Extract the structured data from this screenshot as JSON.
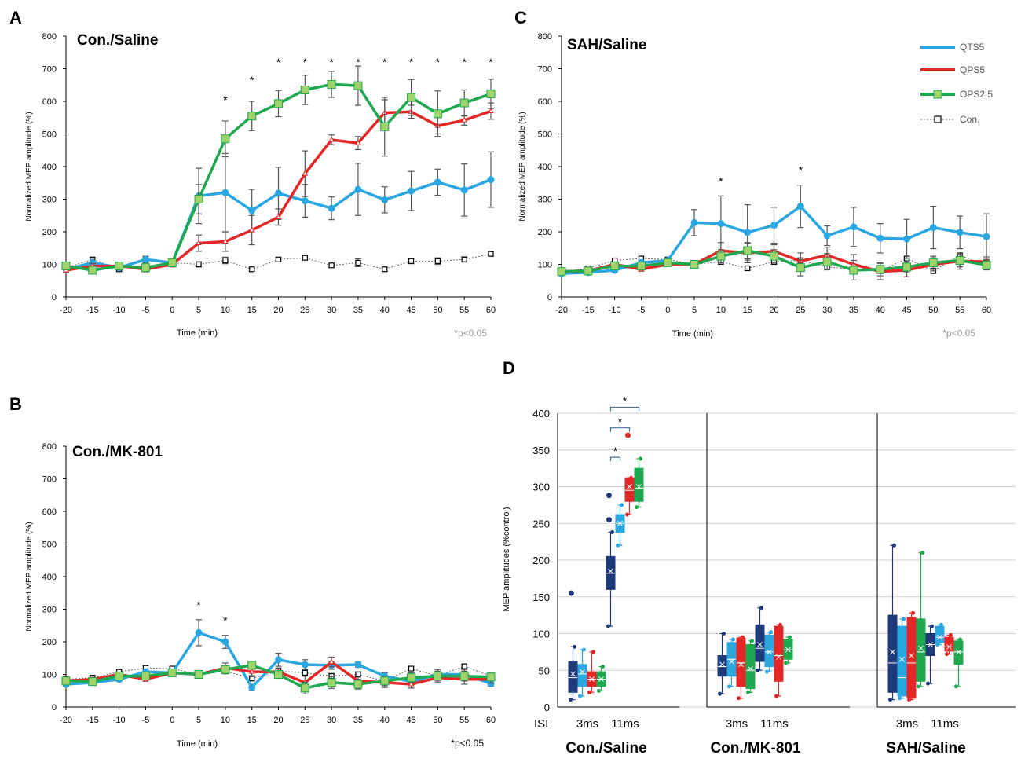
{
  "colors": {
    "QTS5": "#2aa7e0",
    "QPS5": "#e32726",
    "OPS2.5": "#1fa84f",
    "Con.": "#888888",
    "errorbar": "#555555",
    "dark_blue": "#1f3a7a",
    "green_marker": "#9fd36b"
  },
  "legend": {
    "items": [
      "QTS5",
      "QPS5",
      "OPS2.5",
      "Con."
    ]
  },
  "chart_data": [
    {
      "id": "A",
      "type": "line",
      "letter": "A",
      "title": "Con./Saline",
      "xlabel": "Time (min)",
      "ylabel": "Normalized MEP amplitude (%)",
      "ylim": [
        0,
        800
      ],
      "yticks": [
        0,
        100,
        200,
        300,
        400,
        500,
        600,
        700,
        800
      ],
      "x": [
        -20,
        -15,
        -10,
        -5,
        0,
        5,
        10,
        15,
        20,
        25,
        30,
        35,
        40,
        45,
        50,
        55,
        60
      ],
      "series": [
        {
          "name": "Con.",
          "values": [
            90,
            115,
            85,
            115,
            105,
            100,
            112,
            85,
            115,
            120,
            97,
            105,
            85,
            110,
            110,
            115,
            132
          ],
          "err": [
            5,
            5,
            5,
            5,
            5,
            8,
            10,
            6,
            6,
            6,
            6,
            12,
            6,
            8,
            10,
            8,
            6
          ]
        },
        {
          "name": "QTS5",
          "values": [
            85,
            105,
            90,
            115,
            105,
            310,
            320,
            265,
            318,
            295,
            272,
            330,
            298,
            325,
            352,
            328,
            360
          ],
          "err": [
            10,
            10,
            8,
            10,
            8,
            85,
            120,
            65,
            80,
            50,
            35,
            80,
            40,
            60,
            40,
            80,
            85
          ]
        },
        {
          "name": "QPS5",
          "values": [
            82,
            95,
            95,
            85,
            100,
            165,
            170,
            205,
            245,
            378,
            482,
            472,
            565,
            568,
            525,
            542,
            570
          ],
          "err": [
            8,
            8,
            8,
            8,
            8,
            25,
            30,
            45,
            25,
            70,
            15,
            20,
            40,
            20,
            25,
            15,
            25
          ]
        },
        {
          "name": "OPS2.5",
          "values": [
            95,
            82,
            95,
            90,
            105,
            300,
            485,
            555,
            593,
            635,
            652,
            648,
            522,
            612,
            562,
            595,
            623
          ],
          "err": [
            8,
            8,
            8,
            8,
            8,
            45,
            55,
            45,
            40,
            45,
            40,
            60,
            90,
            55,
            70,
            40,
            45
          ]
        }
      ],
      "significance": [
        10,
        15,
        20,
        25,
        30,
        35,
        40,
        45,
        50,
        55,
        60
      ],
      "sig_label": "*p<0.05"
    },
    {
      "id": "B",
      "type": "line",
      "letter": "B",
      "title": "Con./MK-801",
      "xlabel": "Time (min)",
      "ylabel": "Normalized MEP amplitude (%)",
      "ylim": [
        0,
        800
      ],
      "yticks": [
        0,
        100,
        200,
        300,
        400,
        500,
        600,
        700,
        800
      ],
      "x": [
        -20,
        -15,
        -10,
        -5,
        0,
        5,
        10,
        15,
        20,
        25,
        30,
        35,
        40,
        45,
        50,
        55,
        60
      ],
      "series": [
        {
          "name": "Con.",
          "values": [
            85,
            90,
            108,
            120,
            118,
            100,
            110,
            88,
            110,
            105,
            95,
            100,
            80,
            118,
            95,
            125,
            95
          ],
          "err": [
            5,
            5,
            6,
            6,
            6,
            6,
            8,
            8,
            8,
            10,
            8,
            8,
            8,
            6,
            8,
            6,
            6
          ]
        },
        {
          "name": "QTS5",
          "values": [
            70,
            75,
            85,
            108,
            105,
            228,
            200,
            60,
            145,
            130,
            128,
            130,
            95,
            78,
            100,
            100,
            72
          ],
          "err": [
            6,
            6,
            6,
            8,
            8,
            40,
            20,
            10,
            20,
            15,
            12,
            8,
            10,
            10,
            15,
            15,
            8
          ]
        },
        {
          "name": "QPS5",
          "values": [
            80,
            85,
            100,
            85,
            105,
            100,
            120,
            108,
            108,
            75,
            138,
            80,
            75,
            70,
            90,
            85,
            85
          ],
          "err": [
            6,
            6,
            6,
            6,
            6,
            6,
            15,
            15,
            12,
            20,
            15,
            15,
            15,
            12,
            15,
            15,
            12
          ]
        },
        {
          "name": "OPS2.5",
          "values": [
            80,
            78,
            95,
            95,
            105,
            100,
            115,
            128,
            100,
            58,
            75,
            70,
            80,
            90,
            95,
            95,
            92
          ],
          "err": [
            6,
            6,
            6,
            6,
            6,
            6,
            10,
            10,
            12,
            18,
            18,
            15,
            15,
            15,
            15,
            15,
            12
          ]
        }
      ],
      "significance": [
        5,
        10
      ],
      "sig_label": "*p<0.05"
    },
    {
      "id": "C",
      "type": "line",
      "letter": "C",
      "title": "SAH/Saline",
      "xlabel": "Time (min)",
      "ylabel": "Normalized MEP amplitude (%)",
      "ylim": [
        0,
        800
      ],
      "yticks": [
        0,
        100,
        200,
        300,
        400,
        500,
        600,
        700,
        800
      ],
      "x": [
        -20,
        -15,
        -10,
        -5,
        0,
        5,
        10,
        15,
        20,
        25,
        30,
        35,
        40,
        45,
        50,
        55,
        60
      ],
      "series": [
        {
          "name": "Con.",
          "values": [
            75,
            88,
            112,
            118,
            115,
            100,
            108,
            88,
            108,
            112,
            92,
            85,
            80,
            118,
            80,
            128,
            95
          ],
          "err": [
            5,
            5,
            6,
            6,
            6,
            6,
            8,
            6,
            8,
            8,
            8,
            8,
            8,
            6,
            8,
            6,
            6
          ]
        },
        {
          "name": "QTS5",
          "values": [
            72,
            75,
            82,
            105,
            112,
            228,
            225,
            198,
            220,
            278,
            188,
            215,
            180,
            178,
            213,
            198,
            185
          ],
          "err": [
            6,
            6,
            6,
            8,
            8,
            40,
            85,
            85,
            55,
            65,
            30,
            60,
            45,
            60,
            65,
            50,
            70
          ]
        },
        {
          "name": "QPS5",
          "values": [
            78,
            80,
            100,
            85,
            100,
            100,
            142,
            135,
            140,
            110,
            128,
            100,
            78,
            82,
            100,
            110,
            108
          ],
          "err": [
            6,
            6,
            6,
            6,
            6,
            6,
            25,
            30,
            20,
            25,
            25,
            30,
            25,
            20,
            20,
            25,
            15
          ]
        },
        {
          "name": "OPS2.5",
          "values": [
            78,
            80,
            95,
            95,
            105,
            100,
            125,
            142,
            125,
            90,
            108,
            82,
            85,
            92,
            105,
            112,
            98
          ],
          "err": [
            6,
            6,
            6,
            6,
            6,
            6,
            20,
            25,
            20,
            25,
            25,
            30,
            20,
            15,
            20,
            20,
            15
          ]
        }
      ],
      "significance": [
        10,
        25
      ],
      "sig_label": "*p<0.05"
    },
    {
      "id": "D",
      "type": "box",
      "letter": "D",
      "ylabel": "MEP amplitudes (%control)",
      "ylim": [
        0,
        400
      ],
      "yticks": [
        0,
        50,
        100,
        150,
        200,
        250,
        300,
        350,
        400
      ],
      "isi_label": "ISI",
      "isi_ticks": [
        "3ms",
        "11ms"
      ],
      "groups": [
        {
          "name": "Con./Saline",
          "boxes": [
            {
              "isi": "3ms",
              "color": "#1f3a7a",
              "min": 10,
              "q1": 20,
              "median": 40,
              "q3": 62,
              "max": 82,
              "mean": 45,
              "outliers": [
                155
              ]
            },
            {
              "isi": "3ms",
              "color": "#2aa7e0",
              "min": 15,
              "q1": 28,
              "median": 45,
              "q3": 58,
              "max": 78,
              "mean": 48,
              "outliers": []
            },
            {
              "isi": "3ms",
              "color": "#e32726",
              "min": 20,
              "q1": 28,
              "median": 38,
              "q3": 48,
              "max": 75,
              "mean": 38,
              "outliers": []
            },
            {
              "isi": "3ms",
              "color": "#1fa84f",
              "min": 22,
              "q1": 28,
              "median": 38,
              "q3": 48,
              "max": 55,
              "mean": 38,
              "outliers": []
            },
            {
              "isi": "11ms",
              "color": "#1f3a7a",
              "min": 110,
              "q1": 160,
              "median": 182,
              "q3": 205,
              "max": 238,
              "mean": 185,
              "outliers": [
                288,
                255
              ]
            },
            {
              "isi": "11ms",
              "color": "#2aa7e0",
              "min": 220,
              "q1": 238,
              "median": 250,
              "q3": 262,
              "max": 275,
              "mean": 250,
              "outliers": []
            },
            {
              "isi": "11ms",
              "color": "#e32726",
              "min": 262,
              "q1": 280,
              "median": 295,
              "q3": 312,
              "max": 312,
              "mean": 300,
              "outliers": [
                370
              ]
            },
            {
              "isi": "11ms",
              "color": "#1fa84f",
              "min": 272,
              "q1": 280,
              "median": 298,
              "q3": 325,
              "max": 338,
              "mean": 300,
              "outliers": []
            }
          ],
          "brackets": [
            {
              "from": 4,
              "to": 5,
              "level": 340
            },
            {
              "from": 4,
              "to": 6,
              "level": 380
            },
            {
              "from": 4,
              "to": 7,
              "level": 408
            }
          ]
        },
        {
          "name": "Con./MK-801",
          "boxes": [
            {
              "isi": "3ms",
              "color": "#1f3a7a",
              "min": 18,
              "q1": 42,
              "median": 55,
              "q3": 70,
              "max": 100,
              "mean": 58,
              "outliers": []
            },
            {
              "isi": "3ms",
              "color": "#2aa7e0",
              "min": 28,
              "q1": 42,
              "median": 65,
              "q3": 88,
              "max": 92,
              "mean": 62,
              "outliers": []
            },
            {
              "isi": "3ms",
              "color": "#e32726",
              "min": 12,
              "q1": 28,
              "median": 60,
              "q3": 94,
              "max": 95,
              "mean": 58,
              "outliers": []
            },
            {
              "isi": "3ms",
              "color": "#1fa84f",
              "min": 20,
              "q1": 25,
              "median": 50,
              "q3": 85,
              "max": 90,
              "mean": 52,
              "outliers": []
            },
            {
              "isi": "11ms",
              "color": "#1f3a7a",
              "min": 50,
              "q1": 62,
              "median": 80,
              "q3": 112,
              "max": 135,
              "mean": 85,
              "outliers": []
            },
            {
              "isi": "11ms",
              "color": "#2aa7e0",
              "min": 48,
              "q1": 55,
              "median": 75,
              "q3": 98,
              "max": 102,
              "mean": 75,
              "outliers": []
            },
            {
              "isi": "11ms",
              "color": "#e32726",
              "min": 15,
              "q1": 35,
              "median": 70,
              "q3": 110,
              "max": 112,
              "mean": 68,
              "outliers": []
            },
            {
              "isi": "11ms",
              "color": "#1fa84f",
              "min": 60,
              "q1": 65,
              "median": 78,
              "q3": 92,
              "max": 95,
              "mean": 78,
              "outliers": []
            }
          ],
          "brackets": []
        },
        {
          "name": "SAH/Saline",
          "boxes": [
            {
              "isi": "3ms",
              "color": "#1f3a7a",
              "min": 10,
              "q1": 20,
              "median": 60,
              "q3": 125,
              "max": 220,
              "mean": 75,
              "outliers": []
            },
            {
              "isi": "3ms",
              "color": "#2aa7e0",
              "min": 12,
              "q1": 15,
              "median": 40,
              "q3": 110,
              "max": 120,
              "mean": 65,
              "outliers": []
            },
            {
              "isi": "3ms",
              "color": "#e32726",
              "min": 10,
              "q1": 12,
              "median": 60,
              "q3": 122,
              "max": 128,
              "mean": 70,
              "outliers": []
            },
            {
              "isi": "3ms",
              "color": "#1fa84f",
              "min": 28,
              "q1": 35,
              "median": 75,
              "q3": 120,
              "max": 210,
              "mean": 80,
              "outliers": []
            },
            {
              "isi": "11ms",
              "color": "#1f3a7a",
              "min": 32,
              "q1": 70,
              "median": 85,
              "q3": 100,
              "max": 110,
              "mean": 85,
              "outliers": []
            },
            {
              "isi": "11ms",
              "color": "#2aa7e0",
              "min": 85,
              "q1": 88,
              "median": 95,
              "q3": 110,
              "max": 112,
              "mean": 95,
              "outliers": []
            },
            {
              "isi": "11ms",
              "color": "#e32726",
              "min": 72,
              "q1": 76,
              "median": 82,
              "q3": 95,
              "max": 98,
              "mean": 82,
              "outliers": []
            },
            {
              "isi": "11ms",
              "color": "#1fa84f",
              "min": 28,
              "q1": 58,
              "median": 75,
              "q3": 90,
              "max": 92,
              "mean": 75,
              "outliers": []
            }
          ],
          "brackets": []
        }
      ]
    }
  ]
}
